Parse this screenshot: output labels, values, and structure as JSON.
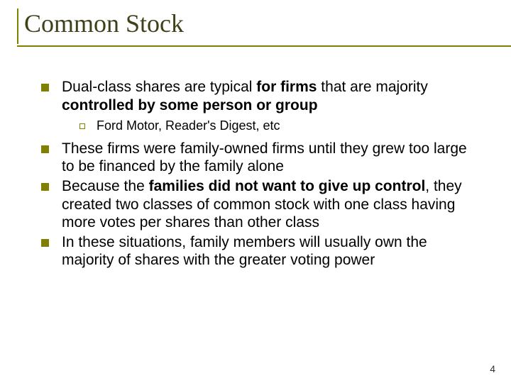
{
  "title": "Common Stock",
  "bullets": [
    {
      "level": 1,
      "runs": [
        {
          "t": "Dual-class shares are typical ",
          "b": false
        },
        {
          "t": "for firms",
          "b": true
        },
        {
          "t": " that are majority ",
          "b": false
        },
        {
          "t": "controlled by some person or group",
          "b": true
        }
      ]
    },
    {
      "level": 2,
      "runs": [
        {
          "t": "Ford Motor, Reader's Digest, etc",
          "b": false
        }
      ]
    },
    {
      "level": 1,
      "runs": [
        {
          "t": "These firms were family-owned firms until they grew too large to be financed by the family alone",
          "b": false
        }
      ]
    },
    {
      "level": 1,
      "runs": [
        {
          "t": "Because the ",
          "b": false
        },
        {
          "t": "families did not want to give up control",
          "b": true
        },
        {
          "t": ", they created two classes of common stock with one class having more votes per shares than other class",
          "b": false
        }
      ]
    },
    {
      "level": 1,
      "runs": [
        {
          "t": "In these situations, family members will usually own the majority of shares with the greater voting power",
          "b": false
        }
      ]
    }
  ],
  "page_number": "4",
  "colors": {
    "accent": "#808000",
    "title_text": "#404019",
    "body_text": "#000000",
    "background": "#ffffff"
  },
  "typography": {
    "title_font": "Times New Roman",
    "title_size_pt": 36,
    "body_font": "Arial",
    "l1_size_pt": 21,
    "l2_size_pt": 18
  }
}
